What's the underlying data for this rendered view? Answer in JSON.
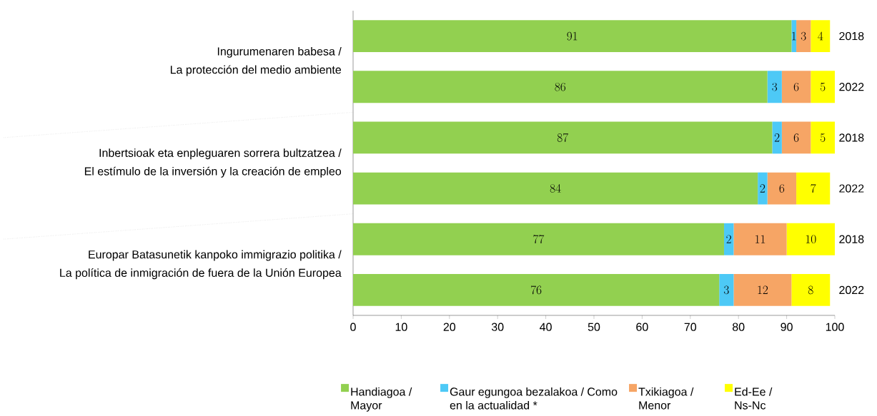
{
  "chart_data": {
    "type": "bar",
    "orientation": "horizontal",
    "stacked": true,
    "categories": [
      "2018",
      "2022",
      "2018",
      "2022",
      "2018",
      "2022"
    ],
    "series": [
      {
        "name": "Handiagoa / Mayor",
        "color": "#92d050",
        "values": [
          91,
          86,
          87,
          84,
          77,
          76
        ]
      },
      {
        "name": "Gaur egungoa bezalakoa / Como en la actualidad *",
        "color": "#4dc9f6",
        "values": [
          1,
          3,
          2,
          2,
          2,
          3
        ]
      },
      {
        "name": "Txikiagoa / Menor",
        "color": "#f6a565",
        "values": [
          3,
          6,
          6,
          6,
          11,
          12
        ]
      },
      {
        "name": "Ed-Ee / Ns-Nc",
        "color": "#ffff00",
        "values": [
          4,
          5,
          5,
          7,
          10,
          8
        ]
      }
    ],
    "xlim": [
      0,
      100
    ],
    "xticks": [
      0,
      10,
      20,
      30,
      40,
      50,
      60,
      70,
      80,
      90,
      100
    ],
    "data_labels": true,
    "legend": "bottom",
    "grid": false,
    "annotations": [
      "Ingurumenaren babesa /",
      "La protección del medio ambiente",
      "Inbertsioak eta enpleguaren sorrera bultzatzea /",
      "El estímulo de la inversión y la creación de empleo",
      "Europar Batasunetik kanpoko immigrazio politika /",
      "La política de inmigración de fuera de la Unión Europea"
    ]
  }
}
